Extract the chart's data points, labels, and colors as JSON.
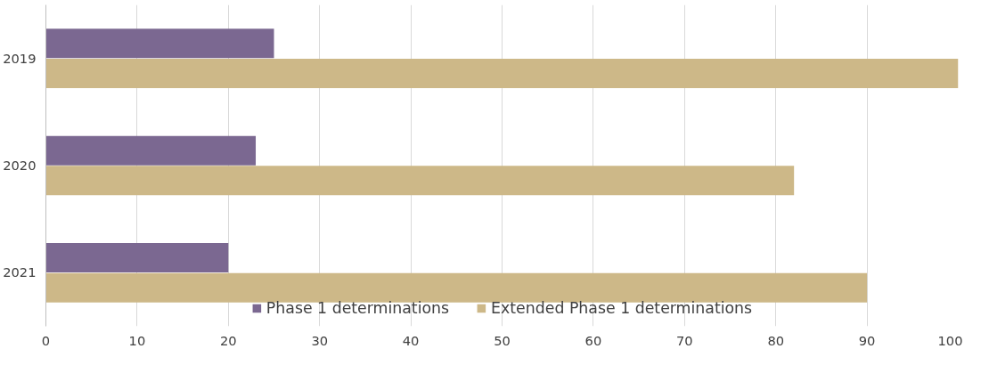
{
  "chart_data": {
    "type": "bar",
    "orientation": "horizontal",
    "categories": [
      "2019",
      "2020",
      "2021"
    ],
    "series": [
      {
        "name": "Phase 1 determinations",
        "color": "#7b6891",
        "values": [
          25,
          23,
          20
        ]
      },
      {
        "name": "Extended Phase 1 determinations",
        "color": "#cdb888",
        "values": [
          100,
          82,
          90
        ]
      }
    ],
    "xlim": [
      0,
      100
    ],
    "xticks": [
      0,
      10,
      20,
      30,
      40,
      50,
      60,
      70,
      80,
      90,
      100
    ],
    "grid": "x",
    "legend": "bottom"
  }
}
